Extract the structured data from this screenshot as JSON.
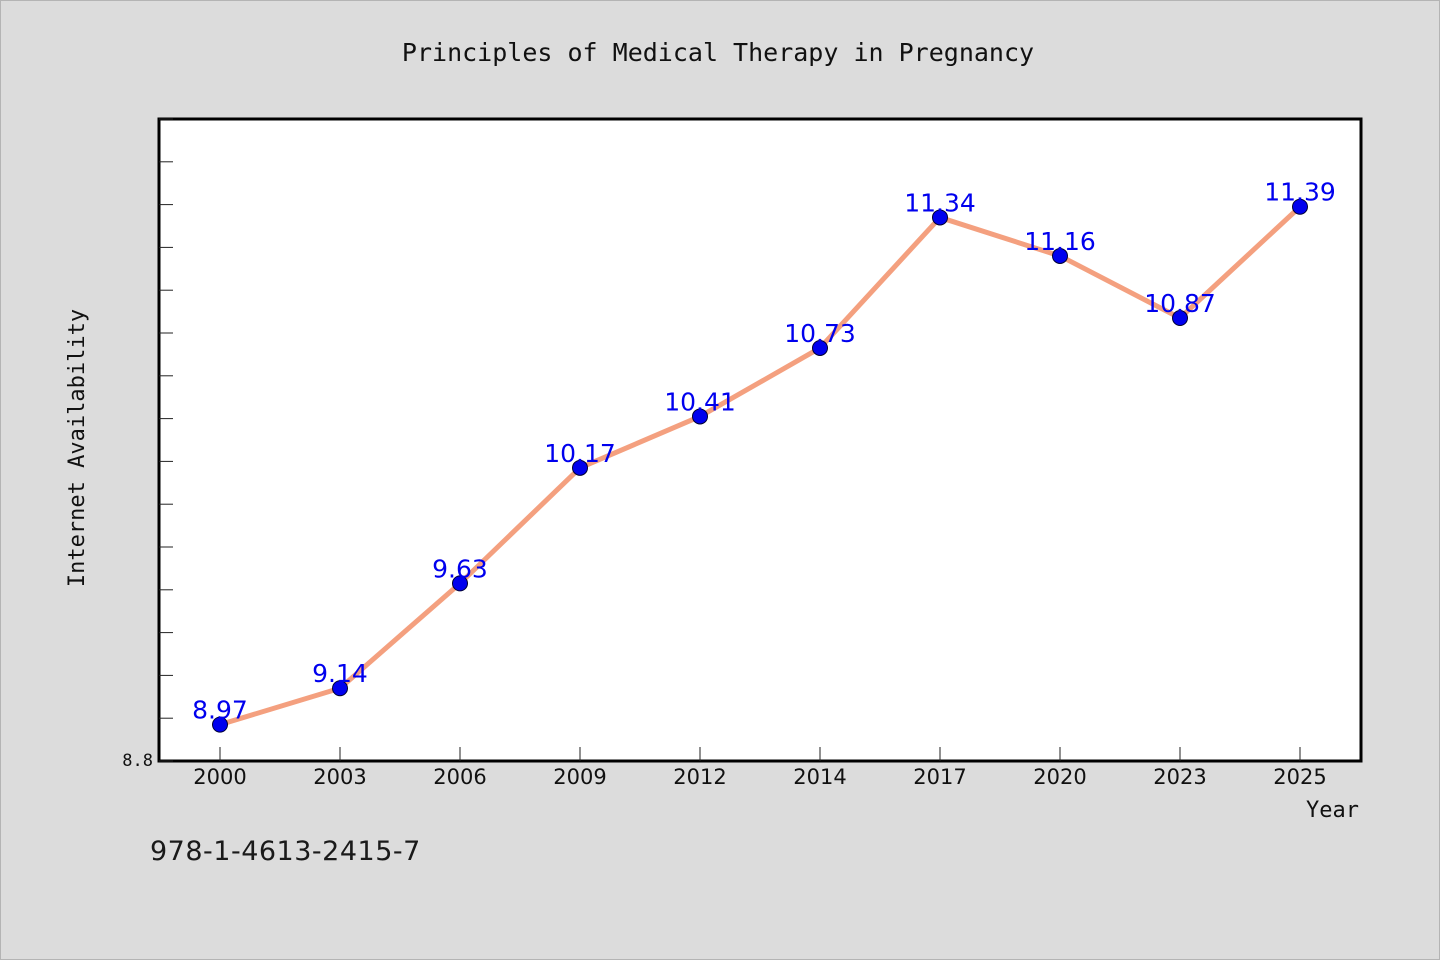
{
  "chart_data": {
    "type": "line",
    "title": "Principles of Medical Therapy in Pregnancy",
    "xlabel": "Year",
    "ylabel": "Internet Availability",
    "categories": [
      "2000",
      "2003",
      "2006",
      "2009",
      "2012",
      "2014",
      "2017",
      "2020",
      "2023",
      "2025"
    ],
    "series": [
      {
        "values": [
          8.97,
          9.14,
          9.63,
          10.17,
          10.41,
          10.73,
          11.34,
          11.16,
          10.87,
          11.39
        ],
        "data_labels": [
          "8.97",
          "9.14",
          "9.63",
          "10.17",
          "10.41",
          "10.73",
          "11.34",
          "11.16",
          "10.87",
          "11.39"
        ]
      }
    ],
    "y_tick_labels": [
      "8.8"
    ],
    "ylim": [
      8.8,
      11.8
    ],
    "grid": false,
    "colors": {
      "line": "#f4a07f",
      "marker": "#0000ee",
      "label": "#0000ee",
      "plot_background": "#ffffff",
      "figure_background": "#dcdcdc"
    }
  },
  "footer": {
    "isbn": "978-1-4613-2415-7"
  }
}
